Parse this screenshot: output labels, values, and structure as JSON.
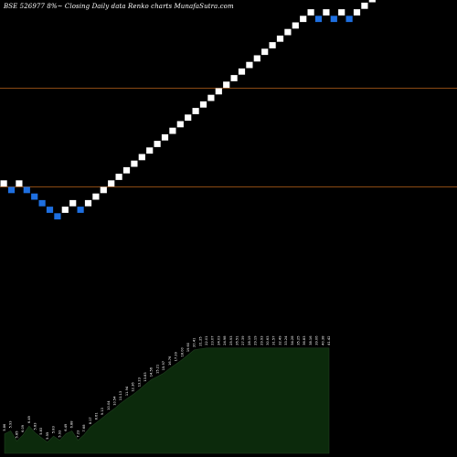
{
  "title": "BSE 526977 8%~ Closing Daily data Renko charts MunafaSutra.com",
  "colors": {
    "background": "#000000",
    "up_brick": "#ffffff",
    "down_brick": "#1e6fe0",
    "level_line": "#8a4a14",
    "volume_fill": "#0c2a0c"
  },
  "chart_data": {
    "type": "renko",
    "xlabel": "",
    "ylabel": "",
    "grid": false,
    "brick_direction": [
      "up",
      "down",
      "up",
      "down",
      "down",
      "down",
      "down",
      "down",
      "up",
      "up",
      "down",
      "up",
      "up",
      "up",
      "up",
      "up",
      "up",
      "up",
      "up",
      "up",
      "up",
      "up",
      "up",
      "up",
      "up",
      "up",
      "up",
      "up",
      "up",
      "up",
      "up",
      "up",
      "up",
      "up",
      "up",
      "up",
      "up",
      "up",
      "up",
      "up",
      "up",
      "down",
      "up",
      "down",
      "up",
      "down",
      "up",
      "up",
      "up",
      "up",
      "up",
      "up",
      "up",
      "up"
    ],
    "horizontal_levels_count": 2,
    "volume_panel": {
      "type": "area",
      "x": [
        0,
        1,
        2,
        3,
        4,
        5,
        6,
        7,
        8,
        9,
        10,
        11,
        12,
        13,
        14,
        15,
        16,
        17,
        18,
        19,
        20,
        21,
        22,
        23,
        24,
        25,
        26,
        27,
        28,
        29,
        30,
        31,
        32,
        33,
        34,
        35,
        36,
        37,
        38,
        39,
        40,
        41,
        42,
        43,
        44,
        45,
        46,
        47,
        48,
        49,
        50,
        51,
        52,
        53
      ],
      "relative_values": [
        5.2,
        6.0,
        3.3,
        4.9,
        7.3,
        5.5,
        4.2,
        3.0,
        4.6,
        3.5,
        5.2,
        6.0,
        3.5,
        5.0,
        7.0,
        8.2,
        9.5,
        10.8,
        12.0,
        13.4,
        14.6,
        15.7,
        17.0,
        18.4,
        19.7,
        20.5,
        21.4,
        22.7,
        23.8,
        25.0,
        26.3,
        27.6,
        27.9,
        28.1,
        28.1,
        28.1,
        28.1,
        28.1,
        28.1,
        28.1,
        28.1,
        28.1,
        28.1,
        28.1,
        28.1,
        28.1,
        28.1,
        28.1,
        28.1,
        28.1,
        28.1,
        28.1,
        28.1,
        28.1
      ],
      "labels": [
        "5.86",
        "5.93",
        "5.85",
        "6.09",
        "6.49",
        "5.83",
        "5.83",
        "5.55",
        "5.83",
        "5.93",
        "6.49",
        "6.88",
        "7.23",
        "7.68",
        "8.17",
        "8.61",
        "9.13",
        "10.04",
        "10.54",
        "11.13",
        "11.94",
        "12.36",
        "13.23",
        "13.83",
        "14.56",
        "15.21",
        "15.97",
        "16.76",
        "17.39",
        "18.00",
        "19.60",
        "20.41",
        "21.25",
        "22.01",
        "23.07",
        "24.03",
        "24.98",
        "25.93",
        "26.51",
        "27.39",
        "28.19",
        "29.19",
        "29.93",
        "30.63",
        "31.57",
        "32.49",
        "33.24",
        "34.28",
        "35.25",
        "36.83",
        "38.16",
        "39.06",
        "40.38",
        "41.42"
      ]
    }
  }
}
